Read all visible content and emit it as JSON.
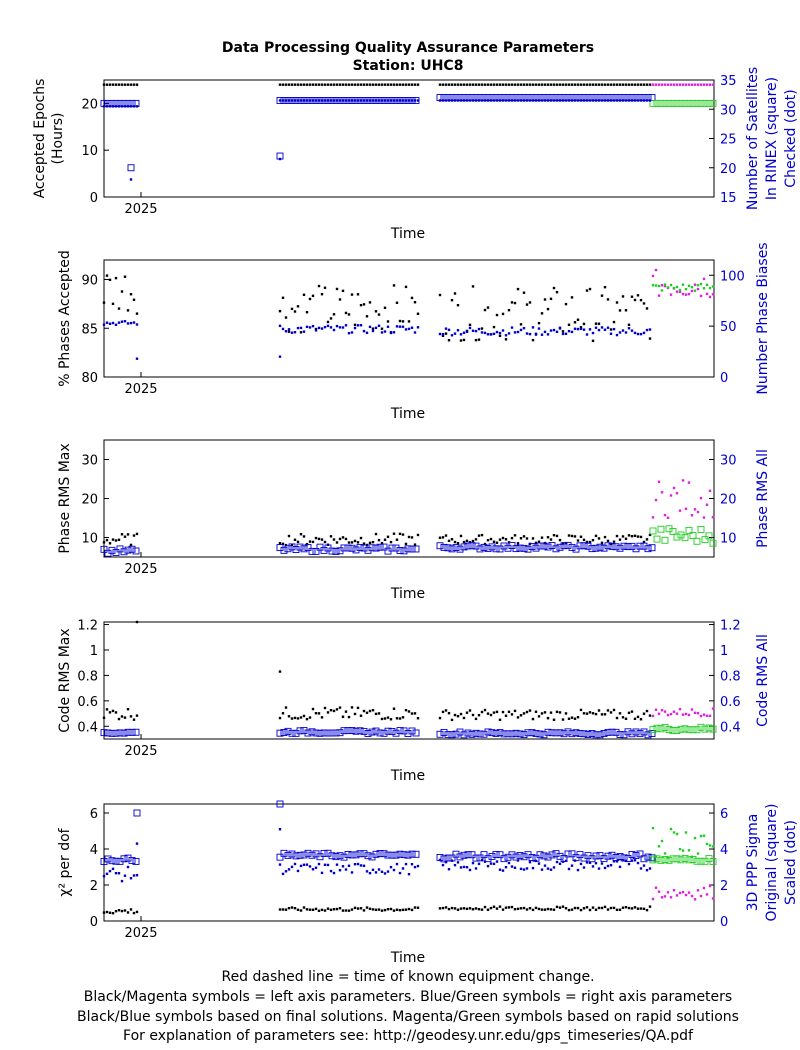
{
  "header": {
    "title": "Data Processing Quality Assurance Parameters",
    "subtitle": "Station: UHC8"
  },
  "footer": {
    "line1": "Red dashed line = time of known equipment change.",
    "line2": "Black/Magenta symbols = left axis parameters. Blue/Green symbols = right axis parameters",
    "line3": "Black/Blue symbols based on final solutions.  Magenta/Green symbols based on rapid solutions",
    "line4": "For explanation of parameters see: http://geodesy.unr.edu/gps_timeseries/QA.pdf"
  },
  "chart_data": [
    {
      "type": "scatter",
      "xlabel": "Time",
      "xtick_label": "2025",
      "ylabel_left": [
        "Accepted Epochs",
        "(Hours)"
      ],
      "ylabel_right": [
        "Number of Satellites",
        "In RINEX (square)",
        "Checked (dot)"
      ],
      "ylim_left": [
        0,
        25
      ],
      "yticks_left": [
        0,
        10,
        20
      ],
      "ylim_right": [
        15,
        35
      ],
      "yticks_right": [
        15,
        20,
        25,
        30,
        35
      ],
      "series": [
        {
          "side": "left",
          "marker": "dot",
          "color": "#000000",
          "segments": [
            {
              "x": [
                0,
                33
              ],
              "y": 24
            },
            {
              "x": [
                176,
                314
              ],
              "y": 24
            },
            {
              "x": [
                336,
                548
              ],
              "y": 24
            }
          ]
        },
        {
          "side": "left",
          "marker": "dot",
          "color": "#dd22dd",
          "segments": [
            {
              "x": [
                549,
                610
              ],
              "y": 24
            }
          ]
        },
        {
          "side": "right",
          "marker": "square",
          "color": "#0000cc",
          "segments": [
            {
              "x": [
                0,
                33
              ],
              "y": 31
            },
            {
              "x": [
                176,
                314
              ],
              "y": 31.5
            },
            {
              "x": [
                336,
                548
              ],
              "y": 32
            }
          ],
          "extra": [
            [
              27,
              20
            ],
            [
              176,
              22
            ]
          ]
        },
        {
          "side": "right",
          "marker": "square",
          "color": "#22cc22",
          "segments": [
            {
              "x": [
                549,
                610
              ],
              "y": 31
            }
          ]
        },
        {
          "side": "right",
          "marker": "dot",
          "color": "#0000cc",
          "segments": [
            {
              "x": [
                0,
                33
              ],
              "y": 30.5
            },
            {
              "x": [
                176,
                314
              ],
              "y": 31.5
            },
            {
              "x": [
                336,
                548
              ],
              "y": 31.5
            }
          ],
          "extra": [
            [
              27,
              18
            ],
            [
              176,
              21.5
            ]
          ]
        }
      ]
    },
    {
      "type": "scatter",
      "xlabel": "Time",
      "xtick_label": "2025",
      "ylabel_left": [
        "% Phases Accepted"
      ],
      "ylabel_right": [
        "Number Phase Biases"
      ],
      "ylim_left": [
        80,
        92
      ],
      "yticks_left": [
        80,
        85,
        90
      ],
      "ylim_right": [
        0,
        115
      ],
      "yticks_right": [
        0,
        50,
        100
      ],
      "series": [
        {
          "side": "left",
          "marker": "dot",
          "color": "#000000",
          "segments": [
            {
              "x": [
                0,
                33
              ],
              "y": 89,
              "spread": 2.5
            },
            {
              "x": [
                176,
                314
              ],
              "y": 87,
              "spread": 2.5
            },
            {
              "x": [
                336,
                548
              ],
              "y": 86.5,
              "spread": 2.8
            }
          ]
        },
        {
          "side": "left",
          "marker": "dot",
          "color": "#dd22dd",
          "segments": [
            {
              "x": [
                549,
                610
              ],
              "y": 89.5,
              "spread": 1.5
            }
          ]
        },
        {
          "side": "right",
          "marker": "dot",
          "color": "#0000cc",
          "segments": [
            {
              "x": [
                0,
                33
              ],
              "y": 53,
              "spread": 2
            },
            {
              "x": [
                176,
                314
              ],
              "y": 47,
              "spread": 4
            },
            {
              "x": [
                336,
                548
              ],
              "y": 45,
              "spread": 4
            }
          ],
          "extra": [
            [
              33,
              18
            ],
            [
              176,
              20
            ]
          ]
        },
        {
          "side": "right",
          "marker": "dot",
          "color": "#22cc22",
          "segments": [
            {
              "x": [
                549,
                610
              ],
              "y": 88,
              "spread": 4
            }
          ]
        }
      ]
    },
    {
      "type": "scatter",
      "xlabel": "Time",
      "xtick_label": "2025",
      "ylabel_left": [
        "Phase RMS Max"
      ],
      "ylabel_right": [
        "Phase RMS All"
      ],
      "ylim_left": [
        5,
        35
      ],
      "yticks_left": [
        10,
        20,
        30
      ],
      "ylim_right": [
        5,
        35
      ],
      "yticks_right": [
        10,
        20,
        30
      ],
      "series": [
        {
          "side": "left",
          "marker": "dot",
          "color": "#000000",
          "segments": [
            {
              "x": [
                0,
                33
              ],
              "y": 9.5,
              "spread": 1.5
            },
            {
              "x": [
                176,
                314
              ],
              "y": 9.5,
              "spread": 1.5
            },
            {
              "x": [
                336,
                548
              ],
              "y": 9.5,
              "spread": 1.2
            }
          ]
        },
        {
          "side": "left",
          "marker": "dot",
          "color": "#dd22dd",
          "segments": [
            {
              "x": [
                549,
                610
              ],
              "y": 20,
              "spread": 5
            }
          ]
        },
        {
          "side": "right",
          "marker": "square",
          "color": "#0000cc",
          "segments": [
            {
              "x": [
                0,
                33
              ],
              "y": 6.5,
              "spread": 0.6
            },
            {
              "x": [
                176,
                314
              ],
              "y": 7,
              "spread": 0.6
            },
            {
              "x": [
                336,
                548
              ],
              "y": 7.5,
              "spread": 0.5
            }
          ]
        },
        {
          "side": "right",
          "marker": "square",
          "color": "#22cc22",
          "segments": [
            {
              "x": [
                549,
                610
              ],
              "y": 10.5,
              "spread": 2
            }
          ]
        }
      ]
    },
    {
      "type": "scatter",
      "xlabel": "Time",
      "xtick_label": "2025",
      "ylabel_left": [
        "Code RMS Max"
      ],
      "ylabel_right": [
        "Code RMS All"
      ],
      "ylim_left": [
        0.3,
        1.22
      ],
      "yticks_left": [
        0.4,
        0.6,
        0.8,
        1,
        1.2
      ],
      "ylim_right": [
        0.3,
        1.22
      ],
      "yticks_right": [
        0.4,
        0.6,
        0.8,
        1,
        1.2
      ],
      "series": [
        {
          "side": "left",
          "marker": "dot",
          "color": "#000000",
          "segments": [
            {
              "x": [
                0,
                33
              ],
              "y": 0.5,
              "spread": 0.05
            },
            {
              "x": [
                176,
                314
              ],
              "y": 0.5,
              "spread": 0.05
            },
            {
              "x": [
                336,
                548
              ],
              "y": 0.49,
              "spread": 0.04
            }
          ],
          "extra": [
            [
              33,
              1.22
            ],
            [
              176,
              0.83
            ]
          ]
        },
        {
          "side": "left",
          "marker": "dot",
          "color": "#dd22dd",
          "segments": [
            {
              "x": [
                549,
                610
              ],
              "y": 0.51,
              "spread": 0.03
            }
          ]
        },
        {
          "side": "right",
          "marker": "square",
          "color": "#0000cc",
          "segments": [
            {
              "x": [
                0,
                33
              ],
              "y": 0.35,
              "spread": 0.01
            },
            {
              "x": [
                176,
                314
              ],
              "y": 0.355,
              "spread": 0.012
            },
            {
              "x": [
                336,
                548
              ],
              "y": 0.345,
              "spread": 0.012
            }
          ]
        },
        {
          "side": "right",
          "marker": "square",
          "color": "#22cc22",
          "segments": [
            {
              "x": [
                549,
                610
              ],
              "y": 0.38,
              "spread": 0.015
            }
          ]
        }
      ]
    },
    {
      "type": "scatter",
      "xlabel": "Time",
      "xtick_label": "2025",
      "ylabel_left": [
        "χ² per dof"
      ],
      "ylabel_right": [
        "3D PPP Sigma",
        "Original (square)",
        "Scaled (dot)"
      ],
      "ylim_left": [
        0,
        6.5
      ],
      "yticks_left": [
        0,
        2,
        4,
        6
      ],
      "ylim_right": [
        0,
        6.5
      ],
      "yticks_right": [
        0,
        2,
        4,
        6
      ],
      "series": [
        {
          "side": "left",
          "marker": "dot",
          "color": "#000000",
          "segments": [
            {
              "x": [
                0,
                33
              ],
              "y": 0.55,
              "spread": 0.15
            },
            {
              "x": [
                176,
                314
              ],
              "y": 0.65,
              "spread": 0.1
            },
            {
              "x": [
                336,
                548
              ],
              "y": 0.7,
              "spread": 0.1
            }
          ]
        },
        {
          "side": "left",
          "marker": "dot",
          "color": "#dd22dd",
          "segments": [
            {
              "x": [
                549,
                610
              ],
              "y": 1.6,
              "spread": 0.4
            }
          ]
        },
        {
          "side": "right",
          "marker": "square",
          "color": "#0000cc",
          "segments": [
            {
              "x": [
                0,
                33
              ],
              "y": 3.4,
              "spread": 0.1
            },
            {
              "x": [
                176,
                314
              ],
              "y": 3.65,
              "spread": 0.12
            },
            {
              "x": [
                336,
                548
              ],
              "y": 3.6,
              "spread": 0.15
            }
          ],
          "extra": [
            [
              33,
              6.0
            ],
            [
              176,
              6.5
            ]
          ]
        },
        {
          "side": "right",
          "marker": "square",
          "color": "#22cc22",
          "segments": [
            {
              "x": [
                549,
                610
              ],
              "y": 3.4,
              "spread": 0.1
            }
          ]
        },
        {
          "side": "right",
          "marker": "dot",
          "color": "#0000cc",
          "segments": [
            {
              "x": [
                0,
                33
              ],
              "y": 2.6,
              "spread": 0.4
            },
            {
              "x": [
                176,
                314
              ],
              "y": 2.9,
              "spread": 0.3
            },
            {
              "x": [
                336,
                548
              ],
              "y": 3.1,
              "spread": 0.3
            }
          ],
          "extra": [
            [
              33,
              4.3
            ],
            [
              176,
              5.1
            ]
          ]
        },
        {
          "side": "right",
          "marker": "dot",
          "color": "#22cc22",
          "segments": [
            {
              "x": [
                549,
                610
              ],
              "y": 4.5,
              "spread": 1.0
            }
          ]
        }
      ]
    }
  ]
}
